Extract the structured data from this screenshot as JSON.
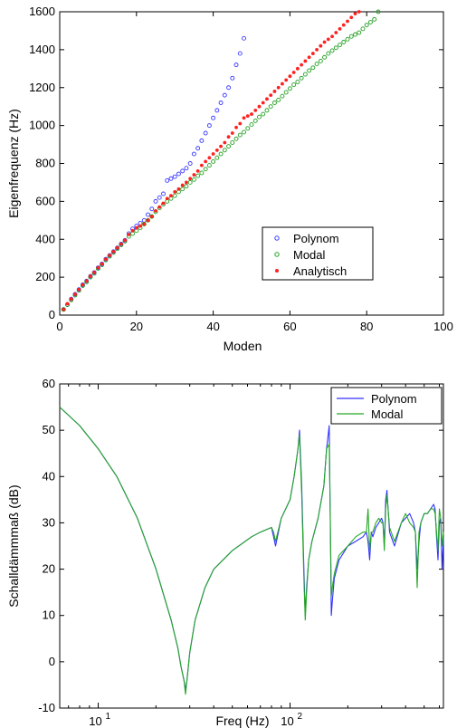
{
  "chart_data": [
    {
      "type": "scatter",
      "xlabel": "Moden",
      "ylabel": "Eigenfrequenz (Hz)",
      "xlim": [
        0,
        100
      ],
      "ylim": [
        0,
        1600
      ],
      "xticks": [
        0,
        20,
        40,
        60,
        80,
        100
      ],
      "yticks": [
        0,
        200,
        400,
        600,
        800,
        1000,
        1200,
        1400,
        1600
      ],
      "grid": false,
      "legend": "lower-right",
      "series": [
        {
          "name": "Polynom",
          "marker": "circle",
          "color": "#3b3bff",
          "x": [
            1,
            2,
            3,
            4,
            5,
            6,
            7,
            8,
            9,
            10,
            11,
            12,
            13,
            14,
            15,
            16,
            17,
            18,
            19,
            20,
            21,
            22,
            23,
            24,
            25,
            26,
            27,
            28,
            29,
            30,
            31,
            32,
            33,
            34,
            35,
            36,
            37,
            38,
            39,
            40,
            41,
            42,
            43,
            44,
            45,
            46,
            47,
            48
          ],
          "y": [
            30,
            55,
            85,
            110,
            135,
            160,
            180,
            205,
            225,
            250,
            270,
            295,
            315,
            335,
            355,
            375,
            395,
            430,
            455,
            470,
            485,
            500,
            530,
            560,
            600,
            620,
            640,
            710,
            720,
            730,
            745,
            760,
            775,
            800,
            850,
            880,
            920,
            960,
            1000,
            1040,
            1080,
            1120,
            1160,
            1200,
            1250,
            1320,
            1380,
            1460
          ]
        },
        {
          "name": "Modal",
          "marker": "circle",
          "color": "#22a022",
          "x": [
            1,
            2,
            3,
            4,
            5,
            6,
            7,
            8,
            9,
            10,
            11,
            12,
            13,
            14,
            15,
            16,
            17,
            18,
            19,
            20,
            21,
            22,
            23,
            24,
            25,
            26,
            27,
            28,
            29,
            30,
            31,
            32,
            33,
            34,
            35,
            36,
            37,
            38,
            39,
            40,
            41,
            42,
            43,
            44,
            45,
            46,
            47,
            48,
            49,
            50,
            51,
            52,
            53,
            54,
            55,
            56,
            57,
            58,
            59,
            60,
            61,
            62,
            63,
            64,
            65,
            66,
            67,
            68,
            69,
            70,
            71,
            72,
            73,
            74,
            75,
            76,
            77,
            78,
            79,
            80,
            81,
            82,
            83
          ],
          "y": [
            30,
            55,
            80,
            105,
            130,
            155,
            175,
            200,
            220,
            245,
            265,
            290,
            310,
            330,
            350,
            370,
            390,
            415,
            430,
            445,
            460,
            480,
            500,
            520,
            545,
            565,
            585,
            600,
            615,
            630,
            650,
            665,
            680,
            700,
            715,
            735,
            750,
            770,
            790,
            810,
            830,
            850,
            870,
            890,
            910,
            930,
            950,
            965,
            985,
            1005,
            1025,
            1045,
            1060,
            1080,
            1100,
            1120,
            1135,
            1155,
            1175,
            1195,
            1215,
            1230,
            1250,
            1270,
            1290,
            1305,
            1325,
            1340,
            1360,
            1380,
            1395,
            1410,
            1425,
            1440,
            1455,
            1470,
            1480,
            1490,
            1510,
            1530,
            1545,
            1560,
            1600
          ]
        },
        {
          "name": "Analytisch",
          "marker": "dot",
          "color": "#ff2020",
          "x": [
            1,
            2,
            3,
            4,
            5,
            6,
            7,
            8,
            9,
            10,
            11,
            12,
            13,
            14,
            15,
            16,
            17,
            18,
            19,
            20,
            21,
            22,
            23,
            24,
            25,
            26,
            27,
            28,
            29,
            30,
            31,
            32,
            33,
            34,
            35,
            36,
            37,
            38,
            39,
            40,
            41,
            42,
            43,
            44,
            45,
            46,
            47,
            48,
            49,
            50,
            51,
            52,
            53,
            54,
            55,
            56,
            57,
            58,
            59,
            60,
            61,
            62,
            63,
            64,
            65,
            66,
            67,
            68,
            69,
            70,
            71,
            72,
            73,
            74,
            75,
            76,
            77,
            78
          ],
          "y": [
            30,
            60,
            85,
            110,
            135,
            160,
            180,
            205,
            225,
            250,
            270,
            295,
            315,
            335,
            355,
            375,
            395,
            425,
            445,
            460,
            470,
            480,
            500,
            520,
            550,
            570,
            590,
            615,
            630,
            650,
            665,
            685,
            700,
            720,
            740,
            760,
            790,
            810,
            830,
            850,
            870,
            890,
            910,
            940,
            960,
            990,
            1010,
            1040,
            1050,
            1060,
            1080,
            1100,
            1120,
            1140,
            1160,
            1180,
            1200,
            1220,
            1240,
            1260,
            1280,
            1300,
            1320,
            1340,
            1360,
            1380,
            1400,
            1420,
            1440,
            1455,
            1470,
            1490,
            1510,
            1530,
            1550,
            1570,
            1590,
            1600
          ]
        }
      ]
    },
    {
      "type": "line",
      "xlabel": "Freq (Hz)",
      "ylabel": "Schalldämmmaß (dB)",
      "xscale": "log",
      "xlim": [
        6.3,
        630
      ],
      "ylim": [
        -10,
        60
      ],
      "xticks_labels": [
        [
          "10",
          "1"
        ],
        [
          "10",
          "2"
        ]
      ],
      "yticks": [
        -10,
        0,
        10,
        20,
        30,
        40,
        50,
        60
      ],
      "grid": false,
      "legend": "top-right",
      "series": [
        {
          "name": "Polynom",
          "color": "#3232ff",
          "x": [
            6.3,
            8,
            10,
            12.5,
            16,
            20,
            24,
            26,
            27,
            28,
            28.5,
            29,
            30,
            32,
            36,
            40,
            50,
            63,
            70,
            80,
            82,
            84,
            90,
            100,
            105,
            110,
            112,
            115,
            118,
            120,
            122,
            125,
            130,
            140,
            150,
            155,
            160,
            162,
            164,
            166,
            170,
            180,
            200,
            220,
            240,
            250,
            255,
            260,
            265,
            270,
            280,
            290,
            300,
            305,
            310,
            315,
            320,
            330,
            350,
            380,
            400,
            420,
            440,
            450,
            460,
            470,
            480,
            500,
            520,
            540,
            560,
            570,
            580,
            590,
            600,
            610,
            620,
            630
          ],
          "y": [
            55,
            51,
            46,
            40,
            31,
            20,
            9,
            3,
            -1,
            -4,
            -6,
            -4,
            2,
            9,
            16,
            20,
            24,
            27,
            28,
            29,
            27,
            25,
            31,
            35,
            40,
            46,
            50,
            38,
            20,
            10,
            16,
            22,
            26,
            31,
            38,
            46,
            51,
            30,
            10,
            13,
            18,
            22,
            25,
            26,
            27,
            28,
            26,
            22,
            28,
            27,
            29,
            30,
            31,
            30,
            25,
            35,
            37,
            28,
            25,
            30,
            31,
            32,
            30,
            28,
            20,
            26,
            30,
            32,
            32,
            33,
            34,
            33,
            27,
            22,
            30,
            31,
            20,
            27
          ]
        },
        {
          "name": "Modal",
          "color": "#25a825",
          "x": [
            6.3,
            8,
            10,
            12.5,
            16,
            20,
            24,
            26,
            27,
            28,
            28.5,
            29,
            30,
            32,
            36,
            40,
            50,
            63,
            70,
            80,
            82,
            84,
            90,
            100,
            105,
            110,
            112,
            115,
            118,
            120,
            122,
            125,
            130,
            140,
            150,
            155,
            160,
            162,
            164,
            166,
            170,
            180,
            200,
            220,
            240,
            250,
            255,
            260,
            265,
            270,
            280,
            290,
            300,
            305,
            310,
            315,
            320,
            330,
            350,
            380,
            400,
            420,
            440,
            450,
            460,
            470,
            480,
            500,
            520,
            540,
            560,
            570,
            580,
            590,
            600,
            610,
            620,
            630
          ],
          "y": [
            55,
            51,
            46,
            40,
            31,
            20,
            9,
            3,
            -1,
            -4,
            -7,
            -4,
            2,
            9,
            16,
            20,
            24,
            27,
            28,
            29,
            28,
            26,
            31,
            35,
            40,
            46,
            49,
            36,
            18,
            9,
            15,
            22,
            26,
            31,
            38,
            46,
            47,
            31,
            14,
            16,
            19,
            23,
            25,
            27,
            28,
            28,
            33,
            24,
            28,
            28,
            30,
            31,
            30,
            30,
            24,
            33,
            36,
            29,
            26,
            30,
            32,
            30,
            29,
            28,
            16,
            28,
            30,
            32,
            32,
            33,
            33,
            32,
            28,
            24,
            33,
            31,
            25,
            28
          ]
        }
      ]
    }
  ]
}
